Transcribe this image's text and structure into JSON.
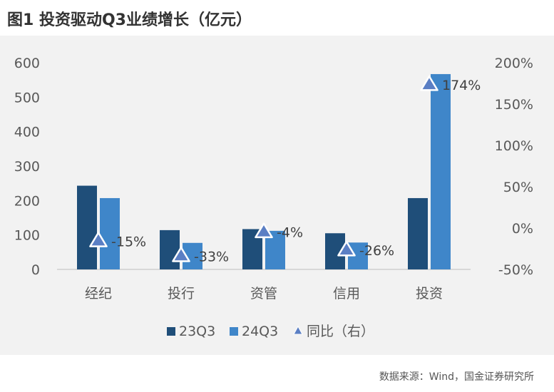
{
  "title": "图1  投资驱动Q3业绩增长（亿元）",
  "source": "数据来源：Wind，国金证券研究所",
  "colors": {
    "series1": "#1f4e79",
    "series2": "#3f86c9",
    "marker": "#5b7fc4",
    "background": "#f2f2f2"
  },
  "chart_data": {
    "type": "bar",
    "categories": [
      "经纪",
      "投行",
      "资管",
      "信用",
      "投资"
    ],
    "series": [
      {
        "name": "23Q3",
        "values": [
          243,
          114,
          117,
          105,
          207
        ]
      },
      {
        "name": "24Q3",
        "values": [
          207,
          77,
          112,
          78,
          567
        ]
      }
    ],
    "line_series": {
      "name": "同比（右）",
      "values": [
        -15,
        -33,
        -4,
        -26,
        174
      ],
      "labels": [
        "-15%",
        "-33%",
        "-4%",
        "-26%",
        "174%"
      ]
    },
    "y_left": {
      "min": 0,
      "max": 600,
      "ticks": [
        "0",
        "100",
        "200",
        "300",
        "400",
        "500",
        "600"
      ]
    },
    "y_right": {
      "min": -50,
      "max": 200,
      "ticks": [
        "-50%",
        "0%",
        "50%",
        "100%",
        "150%",
        "200%"
      ]
    },
    "legend": [
      "23Q3",
      "24Q3",
      "同比（右）"
    ],
    "legend_position": "bottom",
    "grid": false
  }
}
